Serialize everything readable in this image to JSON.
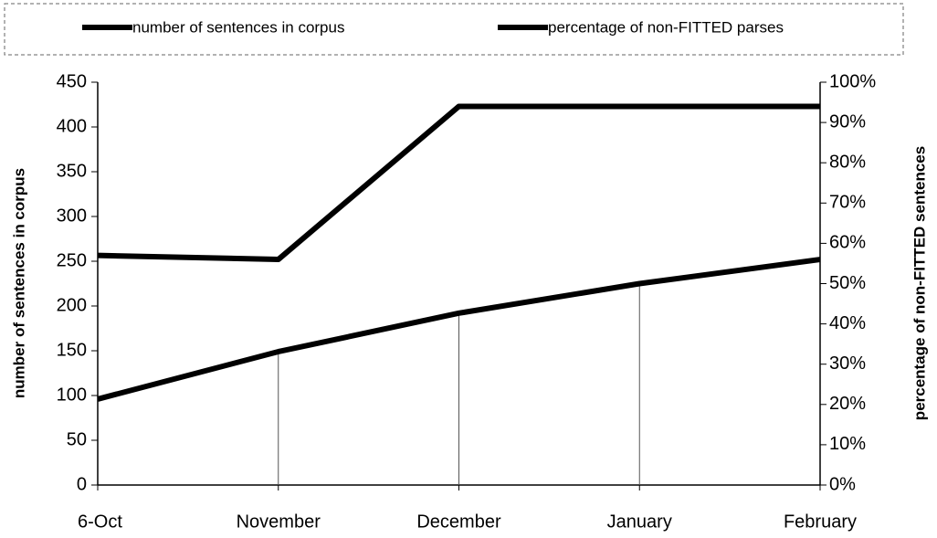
{
  "chart_data": {
    "type": "line",
    "categories": [
      "6-Oct",
      "November",
      "December",
      "January",
      "February"
    ],
    "series": [
      {
        "name": "number of sentences in corpus",
        "color": "#000000",
        "values": [
          96,
          149,
          192,
          225,
          252
        ]
      },
      {
        "name": "percentage of non-FITTED parses",
        "color": "#000000",
        "axis": "y2",
        "values": [
          57,
          56,
          94,
          94,
          94
        ]
      }
    ],
    "ylabel": "number of sentences in corpus",
    "y2label": "percentage of non-FITTED sentences",
    "ylim": [
      0,
      450
    ],
    "yticks": [
      0,
      50,
      100,
      150,
      200,
      250,
      300,
      350,
      400,
      450
    ],
    "y2lim": [
      0,
      100
    ],
    "y2ticks": [
      {
        "value": 0,
        "label": "0%"
      },
      {
        "value": 10,
        "label": "10%"
      },
      {
        "value": 20,
        "label": "20%"
      },
      {
        "value": 30,
        "label": "30%"
      },
      {
        "value": 40,
        "label": "40%"
      },
      {
        "value": 50,
        "label": "50%"
      },
      {
        "value": 60,
        "label": "60%"
      },
      {
        "value": 70,
        "label": "70%"
      },
      {
        "value": 80,
        "label": "80%"
      },
      {
        "value": 90,
        "label": "90%"
      },
      {
        "value": 100,
        "label": "100%"
      }
    ],
    "drop_lines": true,
    "legend": "top"
  }
}
